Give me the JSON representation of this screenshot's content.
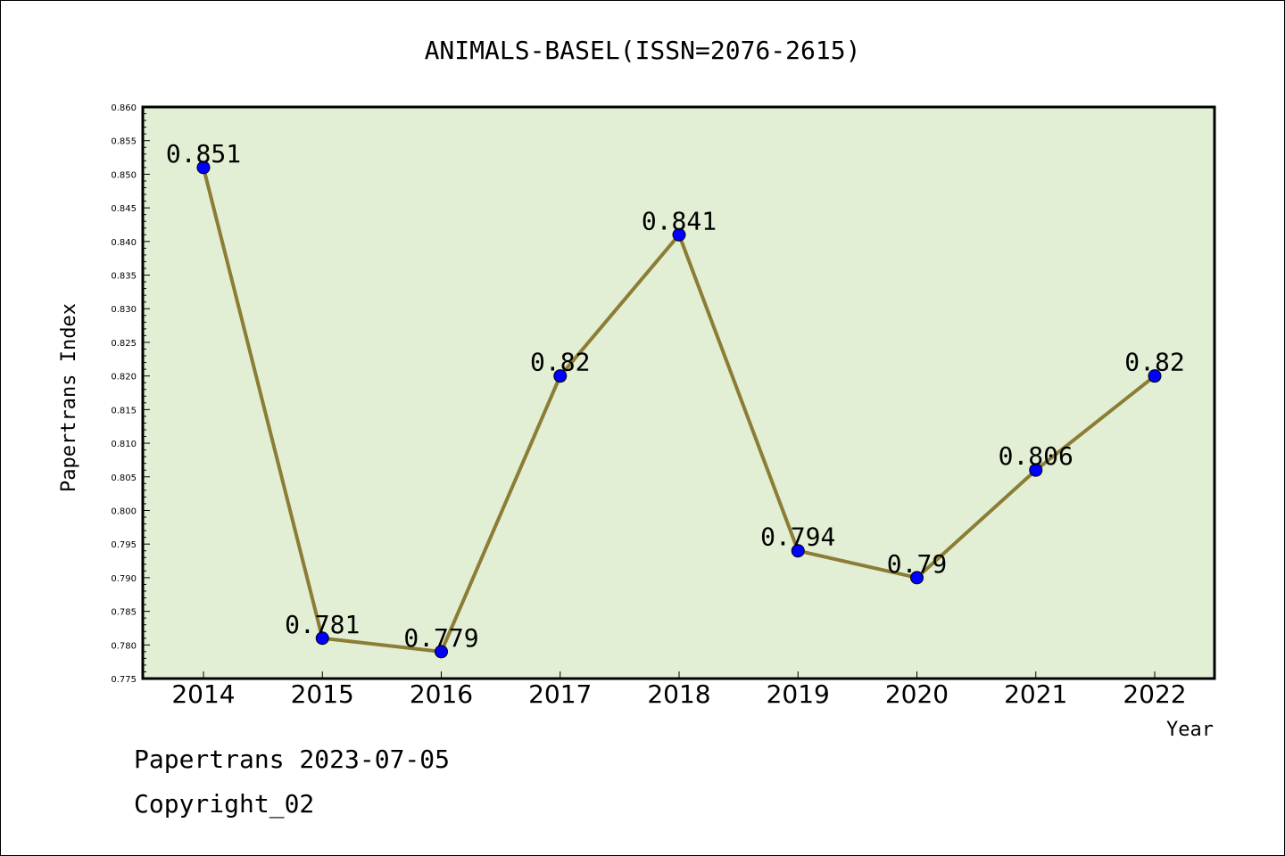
{
  "chart_data": {
    "type": "line",
    "title": "ANIMALS-BASEL(ISSN=2076-2615)",
    "xlabel": "Year",
    "ylabel": "Papertrans Index",
    "categories": [
      "2014",
      "2015",
      "2016",
      "2017",
      "2018",
      "2019",
      "2020",
      "2021",
      "2022"
    ],
    "series": [
      {
        "values": [
          0.851,
          0.781,
          0.779,
          0.82,
          0.841,
          0.794,
          0.79,
          0.806,
          0.82
        ],
        "labels": [
          "0.851",
          "0.781",
          "0.779",
          "0.82",
          "0.841",
          "0.794",
          "0.79",
          "0.806",
          "0.82"
        ]
      }
    ],
    "ylim": [
      0.775,
      0.86
    ],
    "yticks": [
      "0.775",
      "0.780",
      "0.785",
      "0.790",
      "0.795",
      "0.800",
      "0.805",
      "0.810",
      "0.815",
      "0.820",
      "0.825",
      "0.830",
      "0.835",
      "0.840",
      "0.845",
      "0.850",
      "0.855",
      "0.860"
    ],
    "colors": {
      "line": "#8b7d35",
      "marker": "#0000ff",
      "plot_bg": "#e2efd5"
    },
    "grid": false
  },
  "footer": {
    "date_line": "Papertrans 2023-07-05",
    "copyright": "Copyright_02"
  }
}
